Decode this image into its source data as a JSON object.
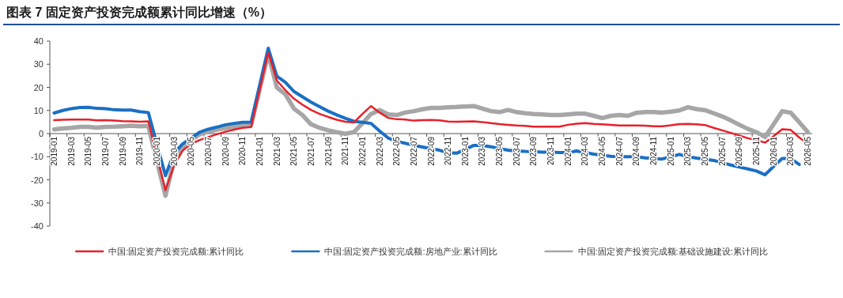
{
  "chart_data": {
    "type": "line",
    "title": "图表 7   固定资产投资完成额累计同比增速（%）",
    "categories": [
      "2019-01",
      null,
      "2019-03",
      null,
      "2019-05",
      null,
      "2019-07",
      null,
      "2019-09",
      null,
      "2019-11",
      null,
      "2020-01",
      null,
      "2020-03",
      null,
      "2020-05",
      null,
      "2020-07",
      null,
      "2020-09",
      null,
      "2020-11",
      null,
      "2021-01",
      null,
      "2021-03",
      null,
      "2021-05",
      null,
      "2021-07",
      null,
      "2021-09",
      null,
      "2021-11",
      null,
      "2022-01",
      null,
      "2022-03",
      null,
      "2022-05",
      null,
      "2022-07",
      null,
      "2022-09",
      null,
      "2022-11",
      null,
      "2023-01",
      null,
      "2023-03",
      null,
      "2023-05",
      null,
      "2023-07",
      null,
      "2023-09",
      null,
      "2023-11",
      null,
      "2024-01",
      null,
      "2024-03",
      null,
      "2024-05",
      null,
      "2024-07",
      null,
      "2024-09",
      null,
      "2024-11",
      null,
      "2025-01",
      null,
      "2025-03",
      null,
      "2025-05",
      null,
      "2025-07",
      null,
      "2025-09",
      null,
      "2025-11",
      null,
      "2026-01",
      null,
      "2026-03",
      null,
      "2026-05"
    ],
    "ylim": [
      -40,
      40
    ],
    "yticks": [
      -40,
      -30,
      -20,
      -10,
      0,
      10,
      20,
      30,
      40
    ],
    "legend": "bottom",
    "series": [
      {
        "name": "中国:固定资产投资完成额:累计同比",
        "color": "#e8202a",
        "values": [
          5.8,
          6.0,
          6.1,
          6.1,
          6.1,
          5.7,
          5.8,
          5.6,
          5.4,
          5.3,
          5.1,
          5.3,
          -9.6,
          -24.5,
          -13.8,
          -7.4,
          -4.5,
          -2.8,
          -1.5,
          -0.3,
          0.8,
          1.7,
          2.5,
          2.8,
          19.0,
          35.0,
          23.0,
          18.8,
          15.1,
          12.5,
          10.2,
          8.5,
          7.2,
          6.0,
          5.1,
          4.8,
          8.5,
          11.9,
          9.1,
          6.8,
          6.2,
          6.1,
          5.6,
          5.8,
          5.9,
          5.7,
          5.2,
          5.1,
          5.2,
          5.3,
          5.0,
          4.5,
          4.1,
          3.8,
          3.5,
          3.3,
          3.0,
          3.0,
          3.0,
          3.0,
          3.8,
          4.3,
          4.5,
          4.2,
          4.0,
          3.8,
          3.5,
          3.5,
          3.5,
          3.4,
          3.2,
          3.2,
          3.6,
          4.1,
          4.2,
          4.0,
          3.7,
          2.5,
          1.4,
          0.3,
          -0.8,
          -2.0,
          -2.8,
          -3.9,
          -1.1,
          1.9,
          1.6,
          -1.7,
          -4.5
        ]
      },
      {
        "name": "中国:固定资产投资完成额:房地产业:累计同比",
        "color": "#1a6fc4",
        "values": [
          8.9,
          10.0,
          10.8,
          11.3,
          11.4,
          10.9,
          10.8,
          10.3,
          10.2,
          10.2,
          9.5,
          9.1,
          -4.6,
          -18.2,
          -8.4,
          -4.5,
          -1.9,
          0.6,
          1.9,
          2.8,
          3.8,
          4.4,
          4.9,
          5.0,
          21.0,
          36.9,
          24.8,
          22.2,
          18.2,
          15.9,
          13.6,
          11.6,
          9.7,
          8.1,
          6.6,
          5.3,
          4.9,
          4.4,
          1.1,
          -1.9,
          -3.4,
          -4.2,
          -5.1,
          -5.8,
          -6.5,
          -7.2,
          -8.3,
          -8.5,
          -6.8,
          -5.1,
          -5.1,
          -5.7,
          -6.5,
          -7.2,
          -7.5,
          -7.7,
          -7.8,
          -8.0,
          -8.0,
          -8.2,
          -8.2,
          -7.5,
          -8.2,
          -8.9,
          -9.4,
          -9.8,
          -10.0,
          -10.0,
          -10.0,
          -10.5,
          -10.8,
          -11.0,
          -10.0,
          -9.0,
          -10.0,
          -10.6,
          -11.1,
          -11.6,
          -12.6,
          -13.6,
          -14.5,
          -15.3,
          -16.2,
          -17.8,
          -14.2,
          -10.8,
          -10.8,
          -13.4,
          null
        ]
      },
      {
        "name": "中国:固定资产投资完成额:基础设施建设:累计同比",
        "color": "#a6a6a6",
        "values": [
          1.8,
          2.2,
          2.5,
          2.9,
          2.9,
          2.6,
          2.9,
          3.0,
          3.2,
          3.4,
          3.2,
          3.3,
          -11.8,
          -26.9,
          -11.8,
          -6.2,
          -2.8,
          -0.3,
          0.8,
          1.7,
          2.4,
          3.0,
          3.3,
          3.6,
          19.0,
          34.5,
          20.0,
          17.0,
          10.8,
          8.0,
          4.0,
          2.5,
          1.4,
          0.6,
          -0.1,
          0.6,
          4.5,
          8.5,
          10.2,
          8.3,
          8.0,
          9.1,
          9.7,
          10.5,
          11.1,
          11.1,
          11.4,
          11.5,
          11.7,
          11.9,
          10.8,
          9.7,
          9.3,
          10.2,
          9.3,
          8.8,
          8.5,
          8.3,
          8.0,
          8.0,
          8.3,
          8.6,
          8.6,
          7.7,
          6.7,
          7.7,
          8.0,
          7.7,
          9.0,
          9.3,
          9.3,
          9.1,
          9.5,
          10.0,
          11.4,
          10.6,
          10.1,
          8.8,
          7.4,
          5.7,
          3.8,
          2.0,
          0.6,
          -1.5,
          4.0,
          9.7,
          9.0,
          4.9,
          0.6
        ]
      }
    ]
  }
}
